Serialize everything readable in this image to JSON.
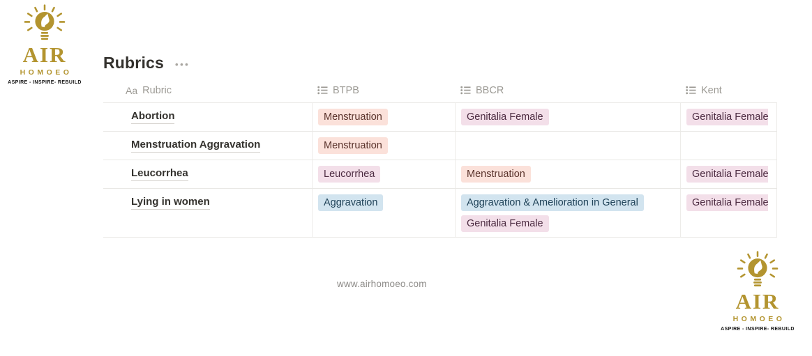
{
  "brand": {
    "name": "AIR",
    "subname": "HOMOEO",
    "tagline": "ASPIRE - INSPIRE- REBUILD",
    "gold": "#b3942f"
  },
  "page": {
    "title": "Rubrics",
    "more_icon_glyph": "•••"
  },
  "table": {
    "title_icon_glyph": "Aa",
    "columns": [
      {
        "label": "Rubric",
        "icon": "title-property-icon"
      },
      {
        "label": "BTPB",
        "icon": "multi-select-icon"
      },
      {
        "label": "BBCR",
        "icon": "multi-select-icon"
      },
      {
        "label": "Kent",
        "icon": "multi-select-icon"
      }
    ],
    "tag_palette": {
      "red": {
        "bg": "#fbe1da",
        "text": "#59322b"
      },
      "pink": {
        "bg": "#f3dfe9",
        "text": "#4c2b41"
      },
      "blue": {
        "bg": "#d2e4ef",
        "text": "#1f4258"
      }
    },
    "rows": [
      {
        "rubric": "Abortion",
        "btpb": [
          {
            "text": "Menstruation",
            "color": "red"
          }
        ],
        "bbcr": [
          {
            "text": "Genitalia Female",
            "color": "pink"
          }
        ],
        "kent": [
          {
            "text": "Genitalia Female",
            "color": "pink",
            "clipped": true
          }
        ]
      },
      {
        "rubric": "Menstruation Aggravation",
        "btpb": [
          {
            "text": "Menstruation",
            "color": "red"
          }
        ],
        "bbcr": [],
        "kent": []
      },
      {
        "rubric": "Leucorrhea",
        "btpb": [
          {
            "text": "Leucorrhea",
            "color": "pink"
          }
        ],
        "bbcr": [
          {
            "text": "Menstruation",
            "color": "red"
          }
        ],
        "kent": [
          {
            "text": "Genitalia Female",
            "color": "pink",
            "clipped": true
          }
        ]
      },
      {
        "rubric": "Lying in women",
        "btpb": [
          {
            "text": "Aggravation",
            "color": "blue"
          }
        ],
        "bbcr": [
          {
            "text": "Aggravation & Amelioration in General",
            "color": "blue"
          },
          {
            "text": "Genitalia Female",
            "color": "pink"
          }
        ],
        "kent": [
          {
            "text": "Genitalia Female",
            "color": "pink",
            "clipped": true
          }
        ]
      }
    ]
  },
  "footer": {
    "url": "www.airhomoeo.com"
  }
}
